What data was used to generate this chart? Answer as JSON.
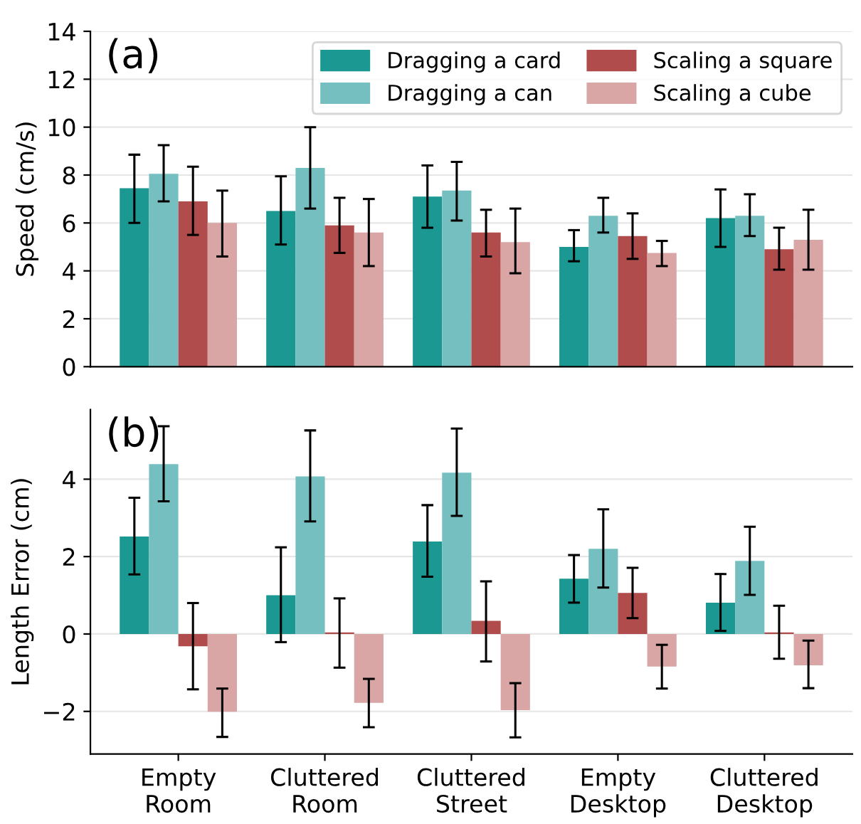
{
  "chart_data": [
    {
      "type": "bar",
      "ylabel": "Speed (cm/s)",
      "annotations": [
        "(a)"
      ],
      "categories": [
        null,
        null,
        null,
        null,
        null
      ],
      "tick_labels": "y",
      "ylim": [
        0,
        14
      ],
      "yticks": [
        0,
        2,
        4,
        6,
        8,
        10,
        12,
        14
      ],
      "grid": "y",
      "legend": "top right",
      "series": [
        {
          "name": "Dragging a card",
          "color": "#1a9891",
          "values": [
            7.45,
            6.5,
            7.1,
            5.0,
            6.2
          ],
          "errors": [
            [
              6.0,
              8.85
            ],
            [
              5.1,
              7.95
            ],
            [
              5.8,
              8.4
            ],
            [
              4.4,
              5.7
            ],
            [
              5.0,
              7.4
            ]
          ]
        },
        {
          "name": "Dragging a can",
          "color": "#76bfc0",
          "values": [
            8.05,
            8.3,
            7.35,
            6.3,
            6.3
          ],
          "errors": [
            [
              6.9,
              9.25
            ],
            [
              6.6,
              10.0
            ],
            [
              6.1,
              8.55
            ],
            [
              5.6,
              7.05
            ],
            [
              5.45,
              7.2
            ]
          ]
        },
        {
          "name": "Scaling a square",
          "color": "#b04c4c",
          "values": [
            6.9,
            5.9,
            5.6,
            5.45,
            4.9
          ],
          "errors": [
            [
              5.5,
              8.35
            ],
            [
              4.75,
              7.05
            ],
            [
              4.6,
              6.55
            ],
            [
              4.5,
              6.4
            ],
            [
              4.05,
              5.8
            ]
          ]
        },
        {
          "name": "Scaling a cube",
          "color": "#d9a5a5",
          "values": [
            6.0,
            5.6,
            5.2,
            4.75,
            5.3
          ],
          "errors": [
            [
              4.6,
              7.35
            ],
            [
              4.2,
              7.0
            ],
            [
              3.9,
              6.6
            ],
            [
              4.2,
              5.25
            ],
            [
              4.05,
              6.55
            ]
          ]
        }
      ]
    },
    {
      "type": "bar",
      "ylabel": "Length Error (cm)",
      "annotations": [
        "(b)"
      ],
      "categories": [
        "Empty\nRoom",
        "Cluttered\nRoom",
        "Cluttered\nStreet",
        "Empty\nDesktop",
        "Cluttered\nDesktop"
      ],
      "ylim": [
        -3.1,
        5.8
      ],
      "yticks": [
        {
          "value": -2,
          "label": "−2"
        },
        0,
        2,
        4
      ],
      "grid": "y",
      "series": [
        {
          "color": "#1a9891",
          "values": [
            2.52,
            1.0,
            2.39,
            1.43,
            0.81
          ],
          "errors": [
            [
              1.54,
              3.52
            ],
            [
              -0.21,
              2.24
            ],
            [
              1.48,
              3.33
            ],
            [
              0.81,
              2.04
            ],
            [
              0.08,
              1.55
            ]
          ]
        },
        {
          "color": "#76bfc0",
          "values": [
            4.39,
            4.07,
            4.17,
            2.2,
            1.89
          ],
          "errors": [
            [
              3.43,
              5.37
            ],
            [
              2.91,
              5.26
            ],
            [
              3.05,
              5.31
            ],
            [
              1.2,
              3.22
            ],
            [
              1.01,
              2.77
            ]
          ]
        },
        {
          "color": "#b04c4c",
          "values": [
            -0.32,
            0.04,
            0.34,
            1.06,
            0.04
          ],
          "errors": [
            [
              -1.43,
              0.8
            ],
            [
              -0.87,
              0.92
            ],
            [
              -0.71,
              1.36
            ],
            [
              0.41,
              1.71
            ],
            [
              -0.64,
              0.73
            ]
          ]
        },
        {
          "color": "#d9a5a5",
          "values": [
            -2.01,
            -1.78,
            -1.97,
            -0.84,
            -0.81
          ],
          "errors": [
            [
              -2.66,
              -1.41
            ],
            [
              -2.41,
              -1.16
            ],
            [
              -2.67,
              -1.27
            ],
            [
              -1.41,
              -0.28
            ],
            [
              -1.4,
              -0.17
            ]
          ]
        }
      ]
    }
  ]
}
